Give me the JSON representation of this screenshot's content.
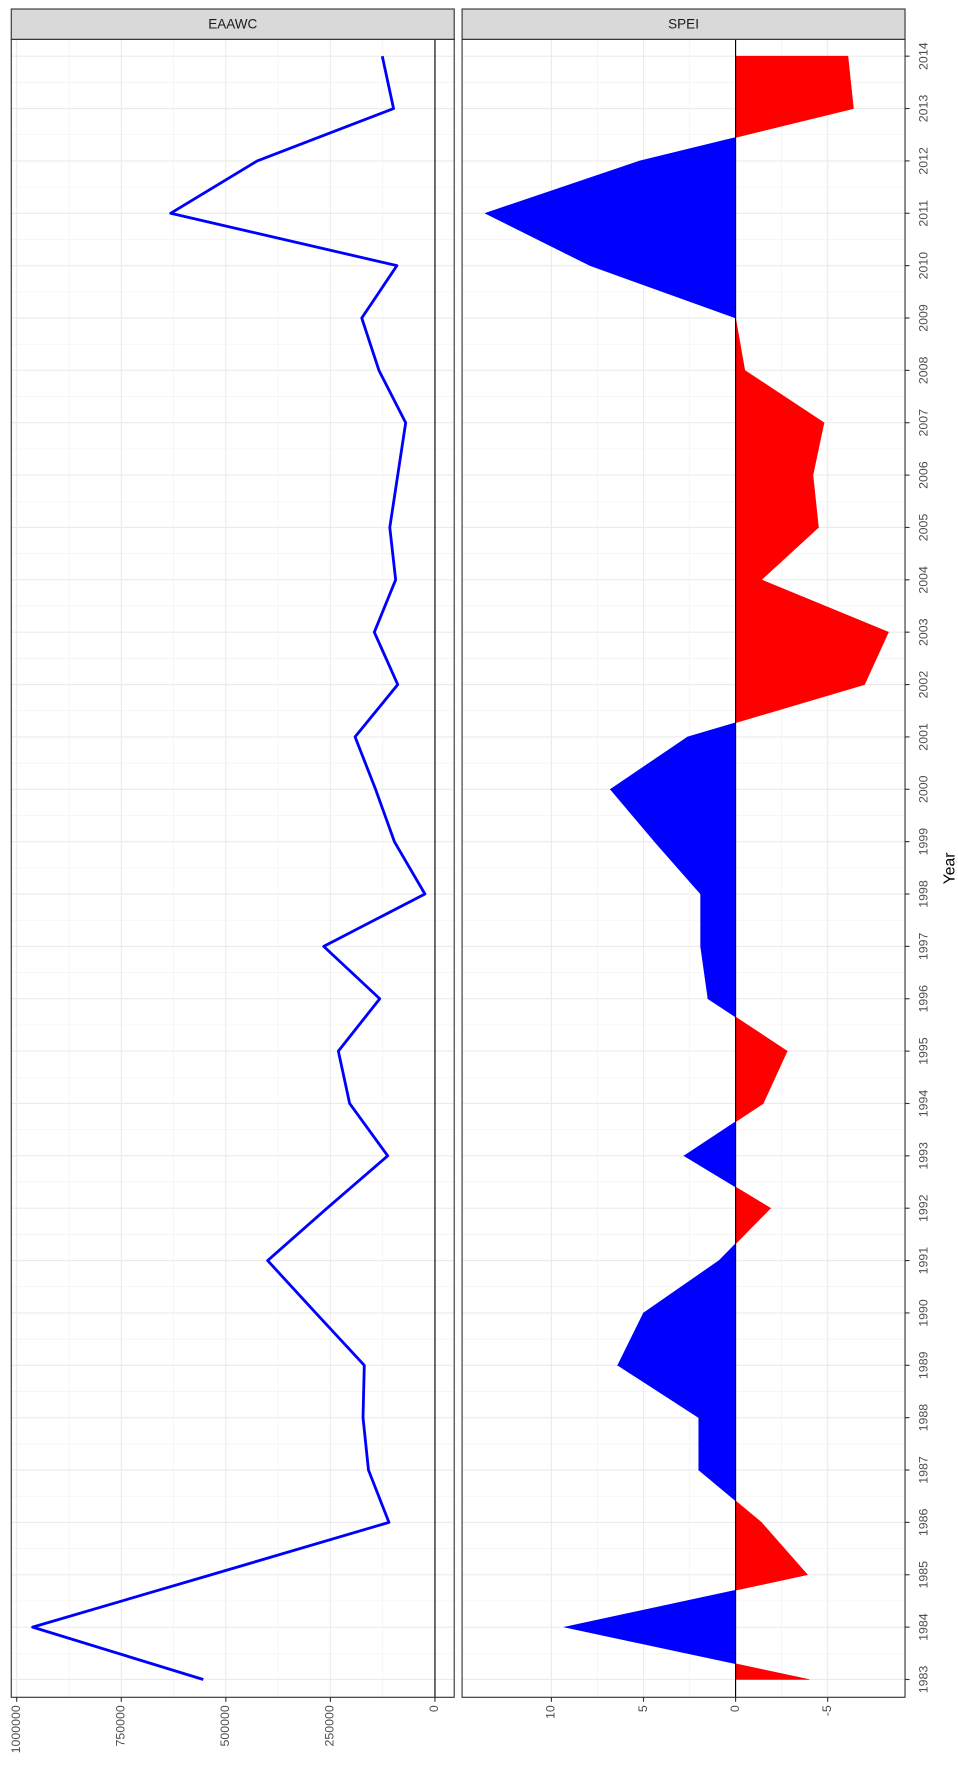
{
  "chart_data": [
    {
      "type": "line",
      "title": "EAAWC",
      "color": "#0000ff",
      "x": [
        1983,
        1984,
        1985,
        1986,
        1987,
        1988,
        1989,
        1990,
        1991,
        1992,
        1993,
        1994,
        1995,
        1996,
        1997,
        1998,
        1999,
        2000,
        2001,
        2002,
        2003,
        2004,
        2005,
        2006,
        2007,
        2008,
        2009,
        2010,
        2011,
        2012,
        2013,
        2014
      ],
      "values": [
        554000,
        962000,
        535000,
        110000,
        159000,
        172000,
        169000,
        285000,
        400000,
        258000,
        113000,
        204000,
        231000,
        132000,
        266000,
        24000,
        97000,
        142000,
        191000,
        89000,
        145000,
        94000,
        108000,
        89000,
        70000,
        134000,
        175000,
        91000,
        632000,
        425000,
        99000,
        126000
      ],
      "xlim": [
        1982.66,
        2014.32
      ],
      "ylim": [
        -46000,
        1013000
      ],
      "yreverse": true,
      "yticks": [
        0,
        250000,
        500000,
        750000,
        1000000
      ],
      "grid": true
    },
    {
      "type": "area",
      "title": "SPEI",
      "positive_color": "#0000ff",
      "negative_color": "#ff0000",
      "xlabel": "Year",
      "x": [
        1983,
        1984,
        1985,
        1986,
        1987,
        1988,
        1989,
        1990,
        1991,
        1992,
        1993,
        1994,
        1995,
        1996,
        1997,
        1998,
        1999,
        2000,
        2001,
        2002,
        2003,
        2004,
        2005,
        2006,
        2007,
        2008,
        2009,
        2010,
        2011,
        2012,
        2013,
        2014
      ],
      "values": [
        -4.0,
        9.3,
        -3.9,
        -1.4,
        2.0,
        2.0,
        6.4,
        5.0,
        0.9,
        -1.9,
        2.8,
        -1.5,
        -2.8,
        1.5,
        1.9,
        1.9,
        4.4,
        6.8,
        2.6,
        -7.0,
        -8.3,
        -1.4,
        -4.5,
        -4.2,
        -4.8,
        -0.5,
        0,
        7.9,
        13.6,
        5.2,
        -6.4,
        -6.1
      ],
      "xlim": [
        1982.66,
        2014.32
      ],
      "ylim": [
        -9.2,
        14.85
      ],
      "yreverse": true,
      "xticks": [
        1983,
        1984,
        1985,
        1986,
        1987,
        1988,
        1989,
        1990,
        1991,
        1992,
        1993,
        1994,
        1995,
        1996,
        1997,
        1998,
        1999,
        2000,
        2001,
        2002,
        2003,
        2004,
        2005,
        2006,
        2007,
        2008,
        2009,
        2010,
        2011,
        2012,
        2013,
        2014
      ],
      "yticks": [
        -5,
        0,
        5,
        10
      ],
      "grid": true
    }
  ]
}
